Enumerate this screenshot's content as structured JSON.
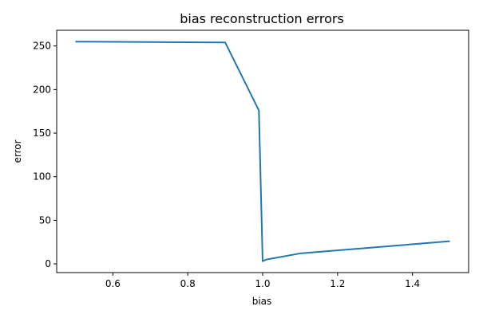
{
  "chart_data": {
    "type": "line",
    "title": "bias reconstruction errors",
    "xlabel": "bias",
    "ylabel": "error",
    "xlim": [
      0.45,
      1.55
    ],
    "ylim": [
      -10,
      268
    ],
    "grid": false,
    "x_ticks": [
      {
        "value": 0.6,
        "label": "0.6"
      },
      {
        "value": 0.8,
        "label": "0.8"
      },
      {
        "value": 1.0,
        "label": "1.0"
      },
      {
        "value": 1.2,
        "label": "1.2"
      },
      {
        "value": 1.4,
        "label": "1.4"
      }
    ],
    "y_ticks": [
      {
        "value": 0,
        "label": "0"
      },
      {
        "value": 50,
        "label": "50"
      },
      {
        "value": 100,
        "label": "100"
      },
      {
        "value": 150,
        "label": "150"
      },
      {
        "value": 200,
        "label": "200"
      },
      {
        "value": 250,
        "label": "250"
      }
    ],
    "series": [
      {
        "color": "#1f77b4",
        "x": [
          0.5,
          0.9,
          0.99,
          1.0,
          1.01,
          1.1,
          1.5
        ],
        "y": [
          255,
          254,
          176,
          3,
          5,
          12,
          26
        ]
      }
    ]
  }
}
